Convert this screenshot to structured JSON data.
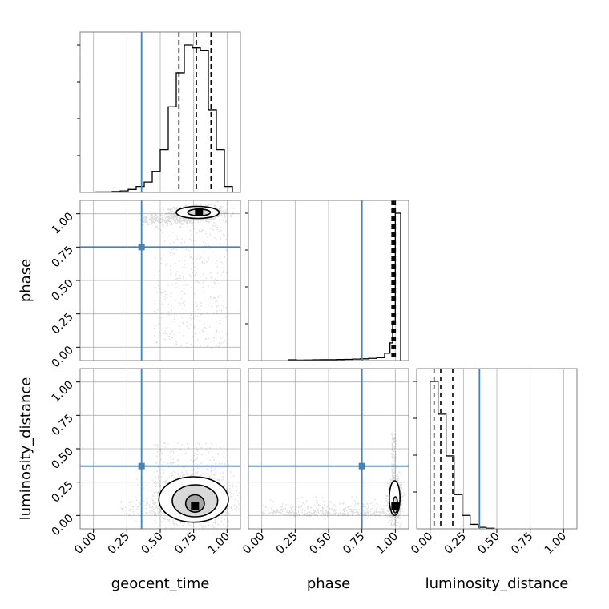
{
  "chart_data": {
    "type": "corner",
    "parameters": [
      "geocent_time",
      "phase",
      "luminosity_distance"
    ],
    "ranges": [
      [
        -0.1,
        1.1
      ],
      [
        -0.1,
        1.1
      ],
      [
        -0.1,
        1.1
      ]
    ],
    "ticks": [
      0.0,
      0.25,
      0.5,
      0.75,
      1.0
    ],
    "tick_labels": [
      "0.00",
      "0.25",
      "0.50",
      "0.75",
      "1.00"
    ],
    "truths": [
      0.36,
      0.75,
      0.37
    ],
    "truth_color": "#4682b4",
    "hist_color": "#000000",
    "grid": true,
    "histograms": {
      "geocent_time": {
        "bin_edges": [
          0.02,
          0.08,
          0.14,
          0.2,
          0.26,
          0.32,
          0.38,
          0.44,
          0.5,
          0.56,
          0.62,
          0.68,
          0.74,
          0.8,
          0.86,
          0.92,
          0.98,
          1.04
        ],
        "heights": [
          0.003,
          0.003,
          0.006,
          0.01,
          0.02,
          0.04,
          0.07,
          0.14,
          0.29,
          0.58,
          0.81,
          1.0,
          0.98,
          0.96,
          0.56,
          0.29,
          0.04
        ],
        "quantiles": [
          0.64,
          0.77,
          0.88
        ]
      },
      "phase": {
        "bin_edges": [
          0.2,
          0.26,
          0.32,
          0.38,
          0.44,
          0.5,
          0.56,
          0.62,
          0.68,
          0.74,
          0.8,
          0.86,
          0.92,
          0.96,
          0.98,
          1.0,
          1.04
        ],
        "heights": [
          0.005,
          0.003,
          0.004,
          0.005,
          0.006,
          0.006,
          0.007,
          0.008,
          0.01,
          0.012,
          0.015,
          0.02,
          0.05,
          0.12,
          0.27,
          1.0
        ],
        "quantiles": [
          0.975,
          0.99,
          1.0
        ]
      },
      "luminosity_distance": {
        "bin_edges": [
          0.0,
          0.06,
          0.12,
          0.18,
          0.24,
          0.3,
          0.36,
          0.42,
          0.48
        ],
        "heights": [
          0.99,
          0.77,
          0.49,
          0.23,
          0.09,
          0.03,
          0.01,
          0.004
        ],
        "quantiles": [
          0.03,
          0.08,
          0.17
        ]
      }
    },
    "joint": [
      {
        "x": "geocent_time",
        "y": "phase",
        "mode": [
          0.79,
          1.01
        ],
        "contours": [
          {
            "level": 1,
            "cx": 0.79,
            "cy": 1.01,
            "rx": 0.085,
            "ry": 0.025
          },
          {
            "level": 2,
            "cx": 0.78,
            "cy": 1.01,
            "rx": 0.16,
            "ry": 0.045
          }
        ]
      },
      {
        "x": "geocent_time",
        "y": "luminosity_distance",
        "mode": [
          0.76,
          0.07
        ],
        "contours": [
          {
            "level": 1,
            "cx": 0.76,
            "cy": 0.09,
            "rx": 0.07,
            "ry": 0.065
          },
          {
            "level": 2,
            "cx": 0.76,
            "cy": 0.11,
            "rx": 0.17,
            "ry": 0.12
          },
          {
            "level": 3,
            "cx": 0.75,
            "cy": 0.12,
            "rx": 0.26,
            "ry": 0.17
          }
        ]
      },
      {
        "x": "phase",
        "y": "luminosity_distance",
        "mode": [
          1.0,
          0.07
        ],
        "contours": [
          {
            "level": 1,
            "cx": 1.0,
            "cy": 0.08,
            "rx": 0.018,
            "ry": 0.06
          },
          {
            "level": 2,
            "cx": 0.995,
            "cy": 0.13,
            "rx": 0.04,
            "ry": 0.13
          }
        ]
      }
    ]
  }
}
